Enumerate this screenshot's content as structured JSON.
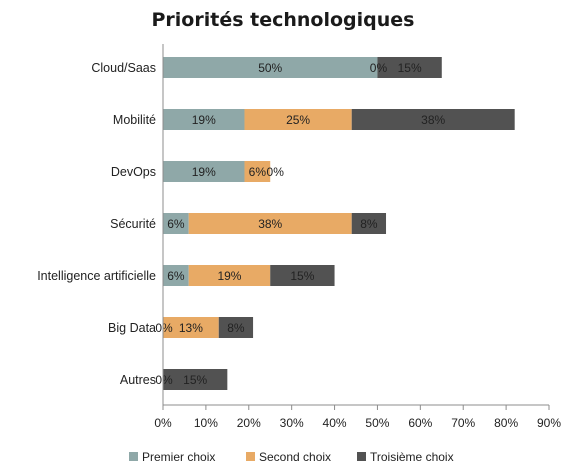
{
  "chart_data": {
    "type": "bar",
    "orientation": "horizontal",
    "stacked": true,
    "title": "Priorités technologiques",
    "xlabel": "",
    "ylabel": "",
    "xlim": [
      0,
      90
    ],
    "grid": false,
    "legend_position": "bottom",
    "x_tick_labels": [
      "0%",
      "10%",
      "20%",
      "30%",
      "40%",
      "50%",
      "60%",
      "70%",
      "80%",
      "90%"
    ],
    "categories": [
      "Cloud/Saas",
      "Mobilité",
      "DevOps",
      "Sécurité",
      "Intelligence artificielle",
      "Big Data",
      "Autres"
    ],
    "series": [
      {
        "name": "Premier choix",
        "color": "#8fa8a8",
        "values": [
          50,
          19,
          19,
          6,
          6,
          0,
          0
        ],
        "labels": [
          "50%",
          "19%",
          "19%",
          "6%",
          "6%",
          "0%",
          "0%"
        ]
      },
      {
        "name": "Second choix",
        "color": "#e8aa65",
        "values": [
          0,
          25,
          6,
          38,
          19,
          13,
          0
        ],
        "labels": [
          "0%",
          "25%",
          "6%",
          "38%",
          "19%",
          "13%",
          ""
        ]
      },
      {
        "name": "Troisième choix",
        "color": "#525252",
        "values": [
          15,
          38,
          0,
          8,
          15,
          8,
          15
        ],
        "labels": [
          "15%",
          "38%",
          "0%",
          "8%",
          "15%",
          "8%",
          "15%"
        ]
      }
    ]
  }
}
